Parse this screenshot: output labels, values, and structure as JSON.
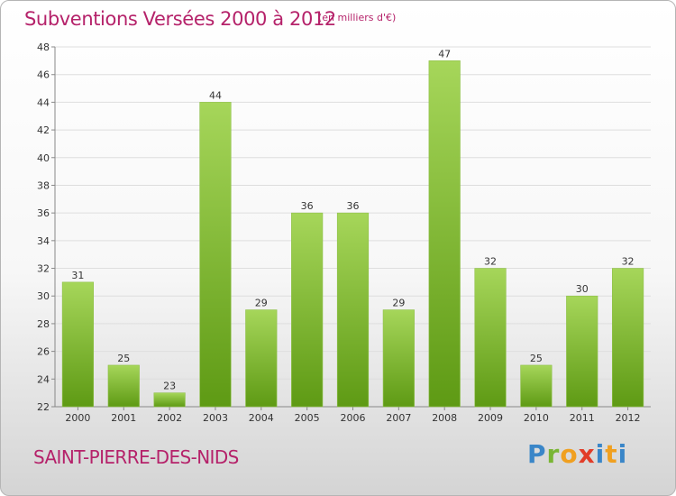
{
  "header": {
    "title": "Subventions Versées 2000 à 2012",
    "unit": "(en milliers d'€)"
  },
  "footer": {
    "commune": "SAINT-PIERRE-DES-NIDS",
    "logo": "Proxiti"
  },
  "colors": {
    "title": "#b5226a",
    "bar_light": "#a6d65a",
    "bar_dark": "#5e9a14",
    "grid": "#dddddd"
  },
  "chart_data": {
    "type": "bar",
    "title": "Subventions Versées 2000 à 2012",
    "xlabel": "",
    "ylabel": "",
    "categories": [
      "2000",
      "2001",
      "2002",
      "2003",
      "2004",
      "2005",
      "2006",
      "2007",
      "2008",
      "2009",
      "2010",
      "2011",
      "2012"
    ],
    "values": [
      31,
      25,
      23,
      44,
      29,
      36,
      36,
      29,
      47,
      32,
      25,
      30,
      32
    ],
    "ylim": [
      22,
      48
    ],
    "yticks": [
      22,
      24,
      26,
      28,
      30,
      32,
      34,
      36,
      38,
      40,
      42,
      44,
      46,
      48
    ],
    "grid": true,
    "legend": "none"
  }
}
